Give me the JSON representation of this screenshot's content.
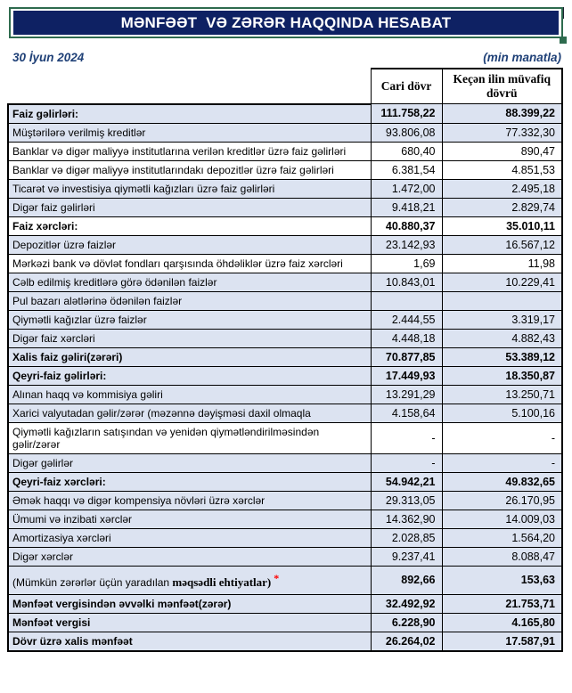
{
  "title": "MƏNFƏƏT  VƏ ZƏRƏR HAQQINDA HESABAT",
  "date": "30 İyun 2024",
  "unit_note": "(min manatla)",
  "colors": {
    "banner_bg": "#0e2163",
    "banner_border": "#2e6b4e",
    "row_blue": "#dce3f1",
    "meta_text": "#1f4077",
    "asterisk_red": "#ff0000"
  },
  "table": {
    "headers": [
      "Cari dövr",
      "Keçən ilin müvafiq dövrü"
    ],
    "rows": [
      {
        "label": "Faiz gəlirləri:",
        "current": "111.758,22",
        "previous": "88.399,22",
        "bold": true
      },
      {
        "label": "Müştərilərə verilmiş kreditlər",
        "current": "93.806,08",
        "previous": "77.332,30"
      },
      {
        "label": "Banklar və digər maliyyə institutlarına verilən kreditlər üzrə faiz gəlirləri",
        "current": "680,40",
        "previous": "890,47",
        "bg": "white"
      },
      {
        "label": "Banklar və digər maliyyə institutlarındakı depozitlər üzrə faiz gəlirləri",
        "current": "6.381,54",
        "previous": "4.851,53",
        "bg": "white"
      },
      {
        "label": "Ticarət və investisiya qiymətli kağızları üzrə faiz gəlirləri",
        "current": "1.472,00",
        "previous": "2.495,18"
      },
      {
        "label": "Digər faiz gəlirləri",
        "current": "9.418,21",
        "previous": "2.829,74"
      },
      {
        "label": "Faiz xərcləri:",
        "current": "40.880,37",
        "previous": "35.010,11",
        "bold": true,
        "bg": "white"
      },
      {
        "label": "Depozitlər üzrə faizlər",
        "current": "23.142,93",
        "previous": "16.567,12"
      },
      {
        "label": "Mərkəzi bank və dövlət fondları qarşısında öhdəliklər üzrə faiz xərcləri",
        "current": "1,69",
        "previous": "11,98",
        "bg": "white"
      },
      {
        "label": "Cəlb edilmiş kreditlərə görə ödənilən faizlər",
        "current": "10.843,01",
        "previous": "10.229,41"
      },
      {
        "label": "Pul bazarı alətlərinə ödənilən faizlər",
        "current": "",
        "previous": ""
      },
      {
        "label": "Qiymətli kağızlar üzrə faizlər",
        "current": "2.444,55",
        "previous": "3.319,17"
      },
      {
        "label": "Digər faiz xərcləri",
        "current": "4.448,18",
        "previous": "4.882,43"
      },
      {
        "label": "Xalis faiz gəliri(zərəri)",
        "current": "70.877,85",
        "previous": "53.389,12",
        "bold": true
      },
      {
        "label": "Qeyri-faiz gəlirləri:",
        "current": "17.449,93",
        "previous": "18.350,87",
        "bold": true
      },
      {
        "label": "Alınan haqq və kommisiya gəliri",
        "current": "13.291,29",
        "previous": "13.250,71"
      },
      {
        "label": "Xarici valyutadan gəlir/zərər (məzənnə dəyişməsi daxil olmaqla",
        "current": "4.158,64",
        "previous": "5.100,16"
      },
      {
        "label": "Qiymətli kağızların satışından və yenidən qiymətləndirilməsindən gəlir/zərər",
        "current": "-",
        "previous": "-",
        "bg": "white"
      },
      {
        "label": "Digər gəlirlər",
        "current": "-",
        "previous": "-"
      },
      {
        "label": "Qeyri-faiz xərcləri:",
        "current": "54.942,21",
        "previous": "49.832,65",
        "bold": true
      },
      {
        "label": "Əmək haqqı və digər kompensiya növləri üzrə xərclər",
        "current": "29.313,05",
        "previous": "26.170,95"
      },
      {
        "label": "Ümumi və inzibati xərclər",
        "current": "14.362,90",
        "previous": "14.009,03"
      },
      {
        "label": "Amortizasiya xərcləri",
        "current": "2.028,85",
        "previous": "1.564,20"
      },
      {
        "label": "Digər xərclər",
        "current": "9.237,41",
        "previous": "8.088,47"
      },
      {
        "label": "(Mümkün zərərlər üçün yaradılan məqsədli ehtiyatlar) *",
        "label_parts": {
          "prefix": "(Mümkün zərərlər üçün yaradılan ",
          "serif": "məqsədli ehtiyatlar)",
          "asterisk": "*"
        },
        "current": "892,66",
        "previous": "153,63",
        "bold_values": true,
        "tall": true
      },
      {
        "label": "Mənfəət vergisindən əvvəlki mənfəət(zərər)",
        "current": "32.492,92",
        "previous": "21.753,71",
        "bold": true
      },
      {
        "label": "Mənfəət vergisi",
        "current": "6.228,90",
        "previous": "4.165,80",
        "bold": true
      },
      {
        "label": "Dövr üzrə xalis mənfəət",
        "current": "26.264,02",
        "previous": "17.587,91",
        "bold": true
      }
    ]
  }
}
